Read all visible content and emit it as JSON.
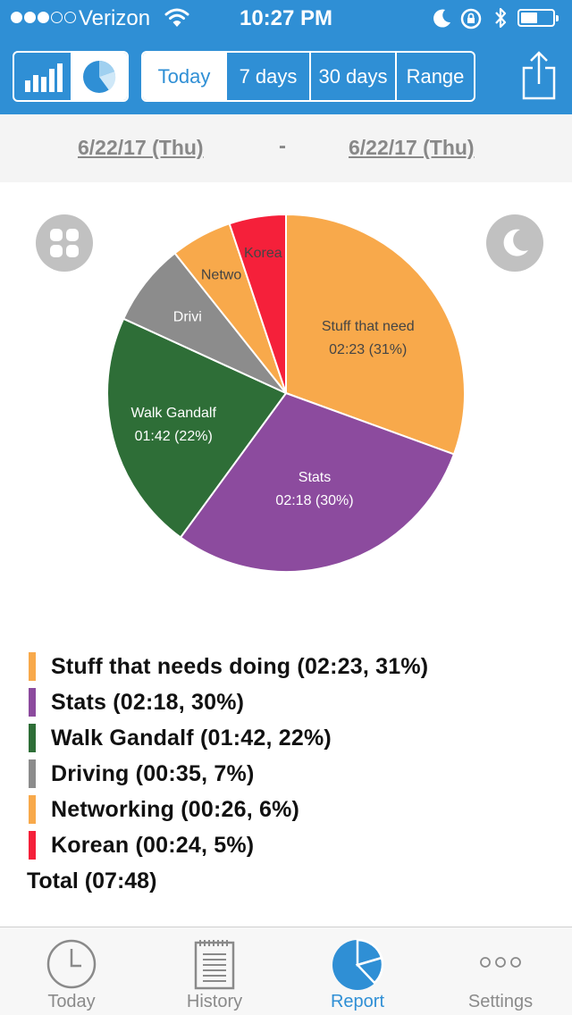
{
  "status_bar": {
    "carrier": "Verizon",
    "time": "10:27 PM",
    "signal_bars": 5,
    "signal_filled": 3
  },
  "toolbar": {
    "view_modes": [
      {
        "icon": "bar-chart-icon",
        "active": false
      },
      {
        "icon": "pie-chart-icon",
        "active": true
      }
    ],
    "ranges": [
      {
        "label": "Today",
        "active": true
      },
      {
        "label": "7 days",
        "active": false
      },
      {
        "label": "30 days",
        "active": false
      },
      {
        "label": "Range",
        "active": false
      }
    ],
    "share_icon": "share-icon"
  },
  "date_range": {
    "start": "6/22/17 (Thu)",
    "separator": "-",
    "end": "6/22/17 (Thu)"
  },
  "chart_controls": {
    "left_icon": "grid-icon",
    "right_icon": "moon-icon"
  },
  "chart_data": {
    "type": "pie",
    "title": "",
    "slices": [
      {
        "label": "Stuff that need",
        "value_label": "02:23 (31%)",
        "minutes": 143,
        "percent": 31,
        "color": "#f8a94b",
        "text_color": "#444444"
      },
      {
        "label": "Stats",
        "value_label": "02:18 (30%)",
        "minutes": 138,
        "percent": 30,
        "color": "#8c4b9e",
        "text_color": "#ffffff"
      },
      {
        "label": "Walk Gandalf",
        "value_label": "01:42 (22%)",
        "minutes": 102,
        "percent": 22,
        "color": "#2e6e37",
        "text_color": "#ffffff"
      },
      {
        "label": "Drivi",
        "value_label": "",
        "minutes": 35,
        "percent": 7,
        "color": "#8c8c8c",
        "text_color": "#ffffff"
      },
      {
        "label": "Netwo",
        "value_label": "",
        "minutes": 26,
        "percent": 6,
        "color": "#f8a94b",
        "text_color": "#444444"
      },
      {
        "label": "Korea",
        "value_label": "",
        "minutes": 24,
        "percent": 5,
        "color": "#f5203a",
        "text_color": "#444444"
      }
    ]
  },
  "legend": {
    "items": [
      {
        "text": "Stuff that needs doing (02:23, 31%)",
        "color": "#f8a94b"
      },
      {
        "text": "Stats (02:18, 30%)",
        "color": "#8c4b9e"
      },
      {
        "text": "Walk Gandalf (01:42, 22%)",
        "color": "#2e6e37"
      },
      {
        "text": "Driving (00:35, 7%)",
        "color": "#8c8c8c"
      },
      {
        "text": "Networking (00:26, 6%)",
        "color": "#f8a94b"
      },
      {
        "text": "Korean (00:24, 5%)",
        "color": "#f5203a"
      }
    ],
    "total": "Total (07:48)"
  },
  "tabs": [
    {
      "label": "Today",
      "icon": "clock-icon",
      "active": false
    },
    {
      "label": "History",
      "icon": "document-icon",
      "active": false
    },
    {
      "label": "Report",
      "icon": "pie-chart-icon",
      "active": true
    },
    {
      "label": "Settings",
      "icon": "more-icon",
      "active": false
    }
  ],
  "colors": {
    "brand": "#2f8fd5",
    "inactive": "#8a8a8a",
    "date_text": "#888888"
  }
}
